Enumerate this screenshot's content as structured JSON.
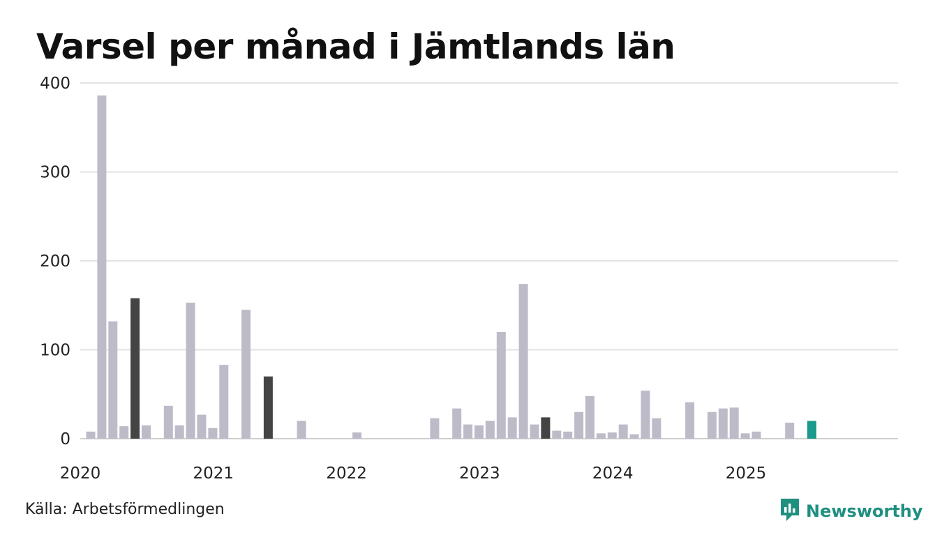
{
  "title": "Varsel per månad i Jämtlands län",
  "source": "Källa: Arbetsförmedlingen",
  "brand": {
    "name": "Newsworthy",
    "icon": "newsworthy-logo-icon",
    "color": "#1f8f80"
  },
  "colors": {
    "default": "#bebbc9",
    "highlight": "#444444",
    "current": "#1a9a8c",
    "grid": "#e2e2e2"
  },
  "chart_data": {
    "type": "bar",
    "title": "Varsel per månad i Jämtlands län",
    "xlabel": "",
    "ylabel": "",
    "ylim": [
      0,
      400
    ],
    "yticks": [
      "0",
      "100",
      "200",
      "300",
      "400"
    ],
    "xticks": [
      "2020",
      "2021",
      "2022",
      "2023",
      "2024",
      "2025"
    ],
    "grid": true,
    "categories": [
      "2020-01",
      "2020-02",
      "2020-03",
      "2020-04",
      "2020-05",
      "2020-06",
      "2020-07",
      "2020-08",
      "2020-09",
      "2020-10",
      "2020-11",
      "2020-12",
      "2021-01",
      "2021-02",
      "2021-03",
      "2021-04",
      "2021-05",
      "2021-06",
      "2021-07",
      "2021-08",
      "2021-09",
      "2021-10",
      "2021-11",
      "2021-12",
      "2022-01",
      "2022-02",
      "2022-03",
      "2022-04",
      "2022-05",
      "2022-06",
      "2022-07",
      "2022-08",
      "2022-09",
      "2022-10",
      "2022-11",
      "2022-12",
      "2023-01",
      "2023-02",
      "2023-03",
      "2023-04",
      "2023-05",
      "2023-06",
      "2023-07",
      "2023-08",
      "2023-09",
      "2023-10",
      "2023-11",
      "2023-12",
      "2024-01",
      "2024-02",
      "2024-03",
      "2024-04",
      "2024-05",
      "2024-06",
      "2024-07",
      "2024-08",
      "2024-09",
      "2024-10",
      "2024-11",
      "2024-12",
      "2025-01",
      "2025-02",
      "2025-03",
      "2025-04",
      "2025-05",
      "2025-06"
    ],
    "values": [
      8,
      386,
      132,
      14,
      158,
      15,
      0,
      37,
      15,
      153,
      27,
      12,
      83,
      0,
      145,
      0,
      70,
      0,
      0,
      20,
      0,
      0,
      0,
      0,
      7,
      0,
      0,
      0,
      0,
      0,
      0,
      23,
      0,
      34,
      16,
      15,
      20,
      120,
      24,
      174,
      16,
      24,
      9,
      8,
      30,
      48,
      6,
      7,
      16,
      5,
      54,
      23,
      0,
      0,
      41,
      0,
      30,
      34,
      35,
      6,
      8,
      0,
      0,
      18,
      0,
      20
    ],
    "highlight": [
      "2020-05",
      "2021-05",
      "2023-06"
    ],
    "current": "2025-06"
  }
}
